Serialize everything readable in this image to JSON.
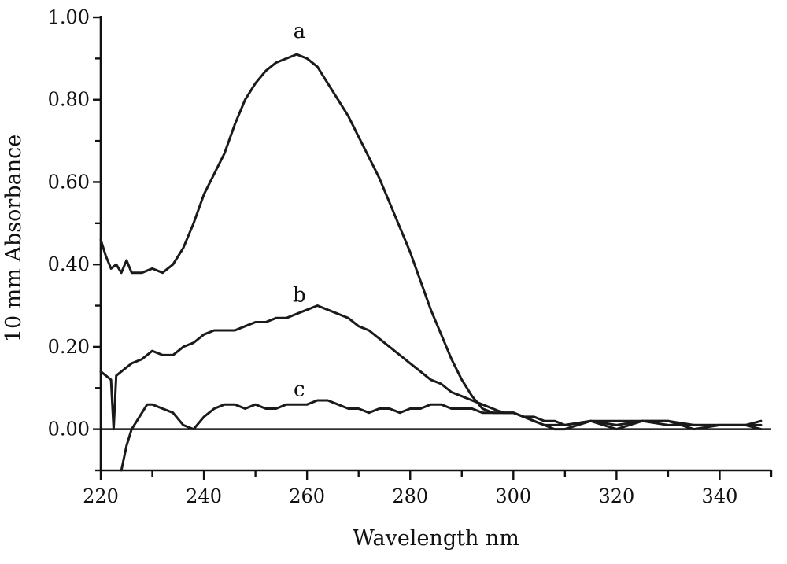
{
  "chart_data": {
    "type": "line",
    "title": "",
    "xlabel": "Wavelength nm",
    "ylabel": "10 mm Absorbance",
    "xlim": [
      220,
      350
    ],
    "ylim": [
      -0.1,
      1.0
    ],
    "x_ticks": [
      220,
      240,
      260,
      280,
      300,
      320,
      340
    ],
    "x_tick_labels": [
      "220",
      "240",
      "260",
      "280",
      "300",
      "320",
      "340"
    ],
    "x_minor_ticks": [
      230,
      250,
      270,
      290,
      310,
      330,
      350
    ],
    "y_ticks": [
      0.0,
      0.2,
      0.4,
      0.6,
      0.8,
      1.0
    ],
    "y_tick_labels": [
      "0.00",
      "0.20",
      "0.40",
      "0.60",
      "0.80",
      "1.00"
    ],
    "y_minor_ticks": [
      -0.1,
      0.1,
      0.3,
      0.5,
      0.7,
      0.9
    ],
    "zero_line": true,
    "grid": false,
    "legend": "none",
    "annotations": [
      {
        "text": "a",
        "x": 258.5,
        "y": 0.95
      },
      {
        "text": "b",
        "x": 258.5,
        "y": 0.31
      },
      {
        "text": "c",
        "x": 258.5,
        "y": 0.08
      }
    ],
    "series": [
      {
        "name": "a",
        "x": [
          220,
          221,
          222,
          223,
          224,
          225,
          226,
          228,
          230,
          232,
          234,
          236,
          238,
          240,
          242,
          244,
          246,
          248,
          250,
          252,
          254,
          256,
          258,
          260,
          262,
          264,
          266,
          268,
          270,
          272,
          274,
          276,
          278,
          280,
          282,
          284,
          286,
          288,
          290,
          292,
          294,
          296,
          298,
          300,
          302,
          304,
          306,
          308,
          310,
          315,
          320,
          325,
          330,
          335,
          340,
          345,
          348
        ],
        "y": [
          0.46,
          0.42,
          0.39,
          0.4,
          0.38,
          0.41,
          0.38,
          0.38,
          0.39,
          0.38,
          0.4,
          0.44,
          0.5,
          0.57,
          0.62,
          0.67,
          0.74,
          0.8,
          0.84,
          0.87,
          0.89,
          0.9,
          0.91,
          0.9,
          0.88,
          0.84,
          0.8,
          0.76,
          0.71,
          0.66,
          0.61,
          0.55,
          0.49,
          0.43,
          0.36,
          0.29,
          0.23,
          0.17,
          0.12,
          0.08,
          0.05,
          0.04,
          0.04,
          0.04,
          0.03,
          0.02,
          0.01,
          0.0,
          0.0,
          0.02,
          0.01,
          0.02,
          0.02,
          0.0,
          0.01,
          0.01,
          0.02
        ]
      },
      {
        "name": "b",
        "x": [
          220,
          221,
          222,
          222.5,
          223,
          224,
          225,
          226,
          228,
          230,
          232,
          234,
          236,
          238,
          240,
          242,
          244,
          246,
          248,
          250,
          252,
          254,
          256,
          258,
          260,
          262,
          264,
          266,
          268,
          270,
          272,
          274,
          276,
          278,
          280,
          282,
          284,
          286,
          288,
          290,
          292,
          294,
          296,
          298,
          300,
          302,
          304,
          306,
          308,
          310,
          315,
          320,
          325,
          330,
          335,
          340,
          345,
          348
        ],
        "y": [
          0.14,
          0.13,
          0.12,
          0.0,
          0.13,
          0.14,
          0.15,
          0.16,
          0.17,
          0.19,
          0.18,
          0.18,
          0.2,
          0.21,
          0.23,
          0.24,
          0.24,
          0.24,
          0.25,
          0.26,
          0.26,
          0.27,
          0.27,
          0.28,
          0.29,
          0.3,
          0.29,
          0.28,
          0.27,
          0.25,
          0.24,
          0.22,
          0.2,
          0.18,
          0.16,
          0.14,
          0.12,
          0.11,
          0.09,
          0.08,
          0.07,
          0.06,
          0.05,
          0.04,
          0.04,
          0.03,
          0.02,
          0.01,
          0.01,
          0.01,
          0.02,
          0.0,
          0.02,
          0.01,
          0.01,
          0.01,
          0.01,
          0.0
        ]
      },
      {
        "name": "c",
        "x": [
          224,
          225,
          226,
          227,
          228,
          229,
          230,
          232,
          234,
          236,
          238,
          240,
          242,
          244,
          246,
          248,
          250,
          252,
          254,
          256,
          258,
          260,
          262,
          264,
          266,
          268,
          270,
          272,
          274,
          276,
          278,
          280,
          282,
          284,
          286,
          288,
          290,
          292,
          294,
          296,
          298,
          300,
          302,
          304,
          306,
          308,
          310,
          315,
          320,
          325,
          330,
          335,
          340,
          345,
          348
        ],
        "y": [
          -0.1,
          -0.04,
          0.0,
          0.02,
          0.04,
          0.06,
          0.06,
          0.05,
          0.04,
          0.01,
          0.0,
          0.03,
          0.05,
          0.06,
          0.06,
          0.05,
          0.06,
          0.05,
          0.05,
          0.06,
          0.06,
          0.06,
          0.07,
          0.07,
          0.06,
          0.05,
          0.05,
          0.04,
          0.05,
          0.05,
          0.04,
          0.05,
          0.05,
          0.06,
          0.06,
          0.05,
          0.05,
          0.05,
          0.04,
          0.04,
          0.04,
          0.04,
          0.03,
          0.03,
          0.02,
          0.02,
          0.01,
          0.02,
          0.02,
          0.02,
          0.02,
          0.01,
          0.01,
          0.01,
          0.01
        ]
      }
    ]
  }
}
